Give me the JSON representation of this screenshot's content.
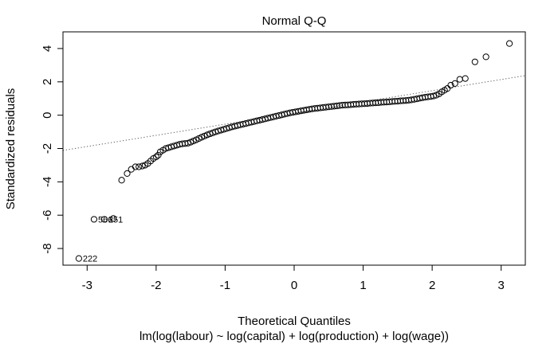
{
  "chart_data": {
    "type": "scatter",
    "title": "Normal Q-Q",
    "xlabel": "Theoretical Quantiles",
    "ylabel": "Standardized residuals",
    "subtitle": "lm(log(labour) ~ log(capital) + log(production) + log(wage))",
    "xlim": [
      -3.35,
      3.35
    ],
    "ylim": [
      -9.0,
      5.0
    ],
    "x_ticks": [
      -3,
      -2,
      -1,
      0,
      1,
      2,
      3
    ],
    "y_ticks": [
      -8,
      -6,
      -4,
      -2,
      0,
      2,
      4
    ],
    "reference_line": {
      "slope": 0.67,
      "intercept": 0.13,
      "style": "dotted"
    },
    "grid": false,
    "legend": "none",
    "point_style": "open circle",
    "labeled_points": [
      {
        "label": "222",
        "x": -3.12,
        "y": -8.6
      },
      {
        "label": "251",
        "x": -2.75,
        "y": -6.25
      },
      {
        "label": "566",
        "x": -2.9,
        "y": -6.25
      }
    ],
    "points": [
      [
        -3.12,
        -8.6
      ],
      [
        -2.9,
        -6.25
      ],
      [
        -2.75,
        -6.25
      ],
      [
        -2.62,
        -6.2
      ],
      [
        -2.5,
        -3.9
      ],
      [
        -2.42,
        -3.5
      ],
      [
        -2.36,
        -3.25
      ],
      [
        -2.3,
        -3.1
      ],
      [
        -2.25,
        -3.1
      ],
      [
        -2.2,
        -3.05
      ],
      [
        -2.16,
        -3.0
      ],
      [
        -2.12,
        -2.9
      ],
      [
        -2.08,
        -2.75
      ],
      [
        -2.04,
        -2.6
      ],
      [
        -2.0,
        -2.5
      ],
      [
        -1.97,
        -2.4
      ],
      [
        -1.94,
        -2.2
      ],
      [
        -1.9,
        -2.1
      ],
      [
        -1.86,
        -2.0
      ],
      [
        -1.82,
        -1.95
      ],
      [
        -1.78,
        -1.9
      ],
      [
        -1.74,
        -1.85
      ],
      [
        -1.7,
        -1.8
      ],
      [
        -1.66,
        -1.75
      ],
      [
        -1.62,
        -1.72
      ],
      [
        -1.58,
        -1.7
      ],
      [
        -1.54,
        -1.68
      ],
      [
        -1.5,
        -1.62
      ],
      [
        -1.46,
        -1.55
      ],
      [
        -1.42,
        -1.48
      ],
      [
        -1.38,
        -1.4
      ],
      [
        -1.34,
        -1.32
      ],
      [
        -1.3,
        -1.25
      ],
      [
        -1.26,
        -1.18
      ],
      [
        -1.22,
        -1.12
      ],
      [
        -1.18,
        -1.06
      ],
      [
        -1.14,
        -1.0
      ],
      [
        -1.1,
        -0.95
      ],
      [
        -1.06,
        -0.9
      ],
      [
        -1.02,
        -0.85
      ],
      [
        -0.98,
        -0.8
      ],
      [
        -0.94,
        -0.75
      ],
      [
        -0.9,
        -0.7
      ],
      [
        -0.86,
        -0.66
      ],
      [
        -0.82,
        -0.62
      ],
      [
        -0.78,
        -0.58
      ],
      [
        -0.74,
        -0.54
      ],
      [
        -0.7,
        -0.5
      ],
      [
        -0.66,
        -0.46
      ],
      [
        -0.62,
        -0.42
      ],
      [
        -0.58,
        -0.38
      ],
      [
        -0.54,
        -0.34
      ],
      [
        -0.5,
        -0.3
      ],
      [
        -0.46,
        -0.26
      ],
      [
        -0.42,
        -0.22
      ],
      [
        -0.38,
        -0.18
      ],
      [
        -0.34,
        -0.14
      ],
      [
        -0.3,
        -0.1
      ],
      [
        -0.26,
        -0.06
      ],
      [
        -0.22,
        -0.02
      ],
      [
        -0.18,
        0.02
      ],
      [
        -0.14,
        0.06
      ],
      [
        -0.1,
        0.1
      ],
      [
        -0.06,
        0.14
      ],
      [
        -0.02,
        0.17
      ],
      [
        0.02,
        0.2
      ],
      [
        0.06,
        0.23
      ],
      [
        0.1,
        0.26
      ],
      [
        0.14,
        0.29
      ],
      [
        0.18,
        0.32
      ],
      [
        0.22,
        0.35
      ],
      [
        0.26,
        0.38
      ],
      [
        0.3,
        0.4
      ],
      [
        0.34,
        0.42
      ],
      [
        0.38,
        0.44
      ],
      [
        0.42,
        0.46
      ],
      [
        0.46,
        0.48
      ],
      [
        0.5,
        0.5
      ],
      [
        0.54,
        0.52
      ],
      [
        0.58,
        0.54
      ],
      [
        0.62,
        0.56
      ],
      [
        0.66,
        0.58
      ],
      [
        0.7,
        0.6
      ],
      [
        0.74,
        0.61
      ],
      [
        0.78,
        0.62
      ],
      [
        0.82,
        0.63
      ],
      [
        0.86,
        0.65
      ],
      [
        0.9,
        0.66
      ],
      [
        0.94,
        0.67
      ],
      [
        0.98,
        0.68
      ],
      [
        1.02,
        0.69
      ],
      [
        1.06,
        0.7
      ],
      [
        1.1,
        0.72
      ],
      [
        1.14,
        0.73
      ],
      [
        1.18,
        0.74
      ],
      [
        1.22,
        0.75
      ],
      [
        1.26,
        0.77
      ],
      [
        1.3,
        0.78
      ],
      [
        1.34,
        0.79
      ],
      [
        1.38,
        0.8
      ],
      [
        1.42,
        0.82
      ],
      [
        1.46,
        0.83
      ],
      [
        1.5,
        0.84
      ],
      [
        1.54,
        0.86
      ],
      [
        1.58,
        0.87
      ],
      [
        1.62,
        0.88
      ],
      [
        1.66,
        0.9
      ],
      [
        1.7,
        0.92
      ],
      [
        1.74,
        0.95
      ],
      [
        1.78,
        0.98
      ],
      [
        1.82,
        1.02
      ],
      [
        1.86,
        1.05
      ],
      [
        1.9,
        1.08
      ],
      [
        1.94,
        1.1
      ],
      [
        1.98,
        1.12
      ],
      [
        2.02,
        1.15
      ],
      [
        2.06,
        1.2
      ],
      [
        2.1,
        1.28
      ],
      [
        2.14,
        1.4
      ],
      [
        2.18,
        1.5
      ],
      [
        2.22,
        1.6
      ],
      [
        2.27,
        1.8
      ],
      [
        2.33,
        1.9
      ],
      [
        2.4,
        2.15
      ],
      [
        2.48,
        2.2
      ],
      [
        2.62,
        3.2
      ],
      [
        2.78,
        3.5
      ],
      [
        3.12,
        4.3
      ]
    ]
  }
}
